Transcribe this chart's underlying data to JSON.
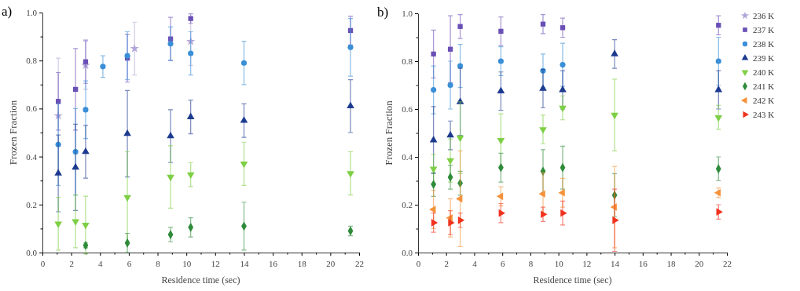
{
  "chart_data": [
    {
      "type": "scatter",
      "title": "a)",
      "xlabel": "Residence time (sec)",
      "ylabel": "Frozen Fraction",
      "xlim": [
        0,
        22
      ],
      "ylim": [
        0,
        1
      ],
      "xticks": [
        0,
        {
          "value": 1,
          "label": null
        },
        2,
        {
          "value": 3,
          "label": null
        },
        4,
        {
          "value": 5,
          "label": null
        },
        6,
        {
          "value": 7,
          "label": null
        },
        8,
        {
          "value": 9,
          "label": null
        },
        10,
        {
          "value": 11,
          "label": null
        },
        12,
        {
          "value": 13,
          "label": null
        },
        14,
        {
          "value": 15,
          "label": null
        },
        16,
        {
          "value": 17,
          "label": null
        },
        18,
        {
          "value": 19,
          "label": null
        },
        20,
        {
          "value": 21,
          "label": null
        },
        22
      ],
      "yticks": [
        {
          "value": 0,
          "label": "0.0"
        },
        {
          "value": 0.1,
          "label": null
        },
        0.2,
        {
          "value": 0.3,
          "label": null
        },
        0.4,
        {
          "value": 0.5,
          "label": null
        },
        0.6,
        {
          "value": 0.7,
          "label": null
        },
        0.8,
        {
          "value": 0.9,
          "label": null
        },
        {
          "value": 1,
          "label": "1.0"
        }
      ],
      "grid": false,
      "legend": false,
      "series": [
        {
          "color": "#b3a6d9",
          "marker": "star",
          "x": [
            1.1,
            3.0,
            6.4,
            10.3
          ],
          "values": [
            0.57,
            0.78,
            0.85,
            0.88
          ],
          "errors": [
            0.24,
            0.1,
            0.11,
            0.1
          ]
        },
        {
          "color": "#6a4fb5",
          "marker": "square",
          "x": [
            1.1,
            2.3,
            3.0,
            5.9,
            8.9,
            10.3,
            21.4
          ],
          "values": [
            0.63,
            0.68,
            0.795,
            0.81,
            0.89,
            0.975,
            0.925
          ],
          "errors": [
            0.12,
            0.17,
            0.09,
            0.1,
            0.09,
            0.02,
            0.06
          ]
        },
        {
          "color": "#3a8fd6",
          "marker": "circle",
          "x": [
            1.1,
            2.3,
            3.0,
            4.2,
            5.9,
            8.9,
            10.3,
            14.0,
            21.4
          ],
          "values": [
            0.45,
            0.42,
            0.595,
            0.775,
            0.82,
            0.87,
            0.83,
            0.79,
            0.855
          ],
          "errors": [
            0.17,
            0.18,
            0.12,
            0.045,
            0.1,
            0.07,
            0.09,
            0.09,
            0.12
          ]
        },
        {
          "color": "#1c3a8f",
          "marker": "triangle",
          "x": [
            1.1,
            2.3,
            3.0,
            5.9,
            8.9,
            10.3,
            14.0,
            21.4
          ],
          "values": [
            0.33,
            0.355,
            0.42,
            0.495,
            0.485,
            0.565,
            0.55,
            0.61
          ],
          "errors": [
            0.16,
            0.18,
            0.11,
            0.18,
            0.11,
            0.07,
            0.07,
            0.11
          ]
        },
        {
          "color": "#7dcf44",
          "marker": "triangle-down",
          "x": [
            1.1,
            2.3,
            3.0,
            5.9,
            8.9,
            10.3,
            14.0,
            21.4
          ],
          "values": [
            0.12,
            0.13,
            0.115,
            0.23,
            0.315,
            0.325,
            0.37,
            0.33
          ],
          "errors": [
            0.11,
            0.11,
            0.12,
            0.19,
            0.13,
            0.05,
            0.09,
            0.09
          ]
        },
        {
          "color": "#2e8b3a",
          "marker": "diamond",
          "x": [
            3.0,
            5.9,
            8.9,
            10.3,
            14.0,
            21.4
          ],
          "values": [
            0.03,
            0.04,
            0.075,
            0.105,
            0.11,
            0.09
          ],
          "errors": [
            0.01,
            0.04,
            0.03,
            0.04,
            0.1,
            0.02
          ]
        }
      ]
    },
    {
      "type": "scatter",
      "title": "b)",
      "xlabel": "Residence time (sec)",
      "ylabel": "Frozen Fraction",
      "xlim": [
        0,
        22
      ],
      "ylim": [
        0,
        1
      ],
      "xticks": [
        0,
        {
          "value": 1,
          "label": null
        },
        2,
        {
          "value": 3,
          "label": null
        },
        4,
        {
          "value": 5,
          "label": null
        },
        6,
        {
          "value": 7,
          "label": null
        },
        8,
        {
          "value": 9,
          "label": null
        },
        10,
        {
          "value": 11,
          "label": null
        },
        12,
        {
          "value": 13,
          "label": null
        },
        14,
        {
          "value": 15,
          "label": null
        },
        16,
        {
          "value": 17,
          "label": null
        },
        18,
        {
          "value": 19,
          "label": null
        },
        20,
        {
          "value": 21,
          "label": null
        },
        22
      ],
      "yticks": [
        {
          "value": 0,
          "label": "0.0"
        },
        {
          "value": 0.1,
          "label": null
        },
        0.2,
        {
          "value": 0.3,
          "label": null
        },
        0.4,
        {
          "value": 0.5,
          "label": null
        },
        0.6,
        {
          "value": 0.7,
          "label": null
        },
        0.8,
        {
          "value": 0.9,
          "label": null
        },
        {
          "value": 1,
          "label": "1.0"
        }
      ],
      "grid": false,
      "legend": "top right",
      "series": [
        {
          "name": "236 K",
          "color": "#b3a6d9",
          "marker": "star"
        },
        {
          "name": "237 K",
          "color": "#6a4fb5",
          "marker": "square",
          "x": [
            1.1,
            2.3,
            3.0,
            5.9,
            8.9,
            10.3,
            21.4
          ],
          "values": [
            0.83,
            0.85,
            0.945,
            0.925,
            0.955,
            0.94,
            0.95
          ],
          "errors": [
            0.1,
            0.14,
            0.05,
            0.06,
            0.04,
            0.04,
            0.04
          ]
        },
        {
          "name": "238 K",
          "color": "#3a8fd6",
          "marker": "circle",
          "x": [
            1.1,
            2.3,
            3.0,
            5.9,
            8.9,
            10.3,
            21.4
          ],
          "values": [
            0.68,
            0.7,
            0.78,
            0.8,
            0.76,
            0.785,
            0.8
          ],
          "errors": [
            0.1,
            0.1,
            0.09,
            0.06,
            0.07,
            0.09,
            0.1
          ]
        },
        {
          "name": "239 K",
          "color": "#1c3a8f",
          "marker": "triangle",
          "x": [
            1.1,
            2.3,
            3.0,
            5.9,
            8.9,
            10.3,
            14.0,
            21.4
          ],
          "values": [
            0.47,
            0.49,
            0.63,
            0.675,
            0.685,
            0.68,
            0.83,
            0.68
          ],
          "errors": [
            0.14,
            0.06,
            0.14,
            0.08,
            0.08,
            0.08,
            0.06,
            0.08
          ]
        },
        {
          "name": "240 K",
          "color": "#7dcf44",
          "marker": "triangle-down",
          "x": [
            1.1,
            2.3,
            3.0,
            5.9,
            8.9,
            10.3,
            14.0,
            21.4
          ],
          "values": [
            0.35,
            0.385,
            0.48,
            0.47,
            0.515,
            0.605,
            0.575,
            0.565
          ],
          "errors": [
            0.06,
            0.09,
            0.15,
            0.11,
            0.06,
            0.05,
            0.15,
            0.05
          ]
        },
        {
          "name": "241 K",
          "color": "#2e8b3a",
          "marker": "diamond",
          "x": [
            1.1,
            2.3,
            3.0,
            5.9,
            8.9,
            10.3,
            14.0,
            21.4
          ],
          "values": [
            0.285,
            0.315,
            0.29,
            0.355,
            0.34,
            0.355,
            0.24,
            0.35
          ],
          "errors": [
            0.05,
            0.05,
            0.05,
            0.06,
            0.09,
            0.09,
            0.09,
            0.05
          ]
        },
        {
          "name": "242 K",
          "color": "#f5923a",
          "marker": "triangle-left",
          "x": [
            1.1,
            2.3,
            3.0,
            5.9,
            8.9,
            10.3,
            14.0,
            21.4
          ],
          "values": [
            0.18,
            0.145,
            0.225,
            0.235,
            0.245,
            0.25,
            0.19,
            0.25
          ],
          "errors": [
            0.08,
            0.08,
            0.2,
            0.04,
            0.09,
            0.06,
            0.17,
            0.02
          ]
        },
        {
          "name": "243 K",
          "color": "#f0321e",
          "marker": "triangle-right",
          "x": [
            1.1,
            2.3,
            3.0,
            5.9,
            8.9,
            10.3,
            14.0,
            21.4
          ],
          "values": [
            0.125,
            0.125,
            0.135,
            0.165,
            0.16,
            0.165,
            0.135,
            0.17
          ],
          "errors": [
            0.04,
            0.05,
            0.03,
            0.04,
            0.03,
            0.05,
            0.13,
            0.03
          ]
        }
      ]
    }
  ]
}
